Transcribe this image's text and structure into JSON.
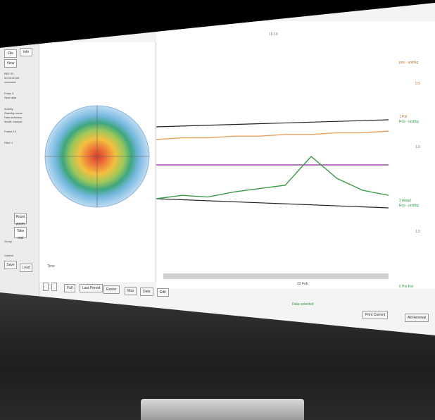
{
  "left_panel": {
    "top_buttons": [
      "File",
      "Info",
      "View"
    ],
    "info_lines": [
      "REF ID",
      "00:00:00:00",
      "comment",
      "Pulse 3",
      "Rest data",
      "Activity",
      "Standby mode",
      "Data selection",
      "Mode: manual",
      "Frame 12",
      "Filter 1"
    ],
    "tool_buttons": [
      "Reset zoom",
      "Take rest"
    ],
    "side_labels": [
      "Group",
      "Control",
      "Save",
      "Load"
    ]
  },
  "bottom_toolbar": {
    "buttons": [
      "",
      "",
      "Full",
      "Last Period",
      "Raster",
      "Max",
      "Data",
      "Edit"
    ],
    "time_label": "Time",
    "status_text": "Data selected"
  },
  "chart": {
    "top_label": "10:10",
    "time_axis": "22 Feb",
    "right_labels": {
      "top_orange": "pos · unit/kg",
      "y1": "0.5",
      "mid_orange": "1   Pol",
      "mid_green": "Pos · unit/kg",
      "y2": "1.0",
      "low": "2   Abaal",
      "low_green": "Pos · unit/kg",
      "y3": "1.0",
      "bottom": "0  Pol Rel"
    }
  },
  "checkboxes": [
    "Print Current",
    "All Renewal"
  ],
  "chart_data": {
    "type": "line",
    "series": [
      {
        "color": "#e8a060",
        "values": [
          0.55,
          0.56,
          0.56,
          0.57,
          0.57,
          0.58,
          0.58,
          0.59,
          0.59,
          0.6
        ]
      },
      {
        "color": "#a04aa8",
        "values": [
          0.4,
          0.4,
          0.4,
          0.4,
          0.4,
          0.4,
          0.4,
          0.4,
          0.4,
          0.4
        ]
      },
      {
        "color": "#3a9a48",
        "values": [
          0.2,
          0.22,
          0.21,
          0.24,
          0.26,
          0.28,
          0.45,
          0.32,
          0.25,
          0.22
        ]
      }
    ]
  }
}
